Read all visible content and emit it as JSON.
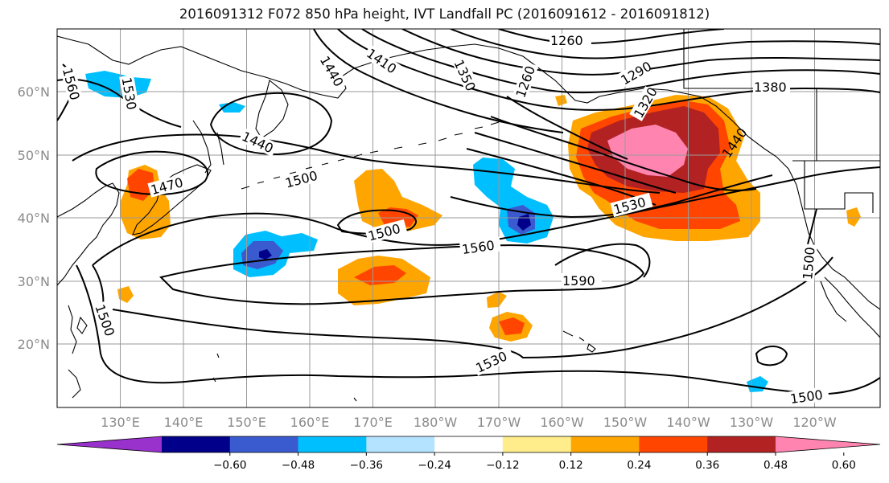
{
  "title": "2016091312 F072 850 hPa height, IVT Landfall PC (2016091612 - 2016091812)",
  "lon_labels": [
    "130°E",
    "140°E",
    "150°E",
    "160°E",
    "170°E",
    "180°W",
    "170°W",
    "160°W",
    "150°W",
    "140°W",
    "130°W",
    "120°W"
  ],
  "lat_labels": [
    "60°N",
    "50°N",
    "40°N",
    "30°N",
    "20°N"
  ],
  "contour_labels": [
    "1260",
    "1290",
    "1320",
    "1350",
    "1380",
    "1410",
    "1440",
    "1440",
    "1440",
    "1470",
    "1500",
    "1500",
    "1500",
    "1500",
    "1500",
    "1530",
    "1530",
    "1530",
    "1560",
    "1560",
    "1590",
    "1260"
  ],
  "colorbar": {
    "ticks": [
      "−0.60",
      "−0.48",
      "−0.36",
      "−0.24",
      "−0.12",
      "0.12",
      "0.24",
      "0.36",
      "0.48",
      "0.60"
    ],
    "colors": [
      "#9932cc",
      "#00008b",
      "#3a5bd0",
      "#00bfff",
      "#b3e3ff",
      "#ffffff",
      "#ffec8b",
      "#ffa500",
      "#ff4500",
      "#b22222",
      "#ff85b0"
    ]
  }
}
